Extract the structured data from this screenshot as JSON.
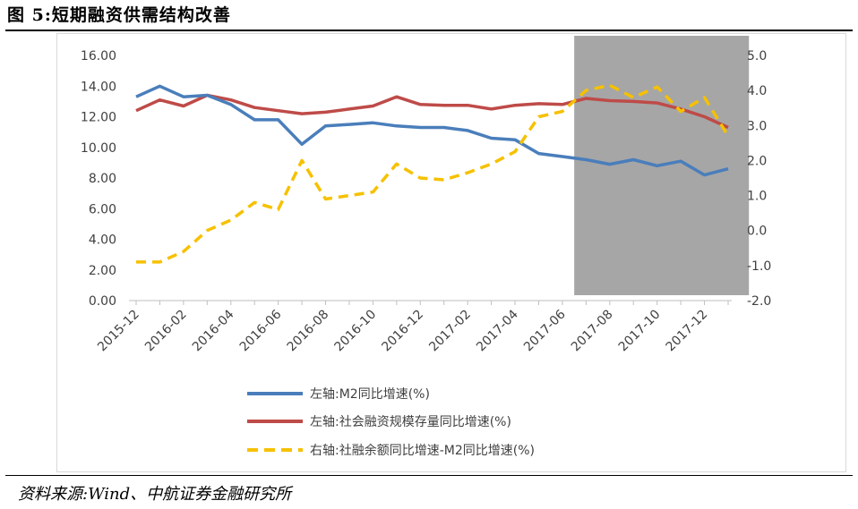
{
  "figure": {
    "title": "图  5:短期融资供需结构改善",
    "source": "资料来源:Wind、中航证券金融研究所"
  },
  "colors": {
    "m2": "#4a7ebb",
    "social": "#be4b48",
    "diff": "#f6c100",
    "shade": "#a6a6a6",
    "axis": "#bfbfbf"
  },
  "chart_data": {
    "type": "line",
    "title": "",
    "x": [
      "2015-12",
      "2016-01",
      "2016-02",
      "2016-03",
      "2016-04",
      "2016-05",
      "2016-06",
      "2016-07",
      "2016-08",
      "2016-09",
      "2016-10",
      "2016-11",
      "2016-12",
      "2017-01",
      "2017-02",
      "2017-03",
      "2017-04",
      "2017-05",
      "2017-06",
      "2017-07",
      "2017-08",
      "2017-09",
      "2017-10",
      "2017-11",
      "2017-12",
      "2018-01"
    ],
    "x_tick_labels": [
      "2015-12",
      "2016-02",
      "2016-04",
      "2016-06",
      "2016-08",
      "2016-10",
      "2016-12",
      "2017-02",
      "2017-04",
      "2017-06",
      "2017-08",
      "2017-10",
      "2017-12"
    ],
    "y_left": {
      "ylim": [
        0,
        16
      ],
      "ticks": [
        "0.00",
        "2.00",
        "4.00",
        "6.00",
        "8.00",
        "10.00",
        "12.00",
        "14.00",
        "16.00"
      ]
    },
    "y_right": {
      "ylim": [
        -2,
        5
      ],
      "ticks": [
        "-2.0",
        "-1.0",
        "0.0",
        "1.0",
        "2.0",
        "3.0",
        "4.0",
        "5.0"
      ]
    },
    "shaded_region": {
      "from": "2017-07",
      "to": "2018-01"
    },
    "legend_position": "bottom",
    "grid": false,
    "series": [
      {
        "name": "左轴:M2同比增速(%)",
        "axis": "left",
        "style": "solid",
        "values": [
          13.3,
          14.0,
          13.3,
          13.4,
          12.8,
          11.8,
          11.8,
          10.2,
          11.4,
          11.5,
          11.6,
          11.4,
          11.3,
          11.3,
          11.1,
          10.6,
          10.5,
          9.6,
          9.4,
          9.2,
          8.9,
          9.2,
          8.8,
          9.1,
          8.2,
          8.6
        ]
      },
      {
        "name": "左轴:社会融资规模存量同比增速(%)",
        "axis": "left",
        "style": "solid",
        "values": [
          12.4,
          13.1,
          12.7,
          13.4,
          13.1,
          12.6,
          12.4,
          12.2,
          12.3,
          12.5,
          12.7,
          13.3,
          12.8,
          12.75,
          12.75,
          12.5,
          12.75,
          12.85,
          12.8,
          13.2,
          13.05,
          13.0,
          12.9,
          12.5,
          12.0,
          11.3
        ]
      },
      {
        "name": "右轴:社融余额同比增速-M2同比增速(%)",
        "axis": "right",
        "style": "dashed",
        "values": [
          -0.9,
          -0.9,
          -0.6,
          0.0,
          0.3,
          0.8,
          0.6,
          2.0,
          0.9,
          1.0,
          1.1,
          1.9,
          1.5,
          1.45,
          1.65,
          1.9,
          2.25,
          3.25,
          3.4,
          4.0,
          4.15,
          3.8,
          4.1,
          3.4,
          3.8,
          2.7
        ]
      }
    ]
  }
}
